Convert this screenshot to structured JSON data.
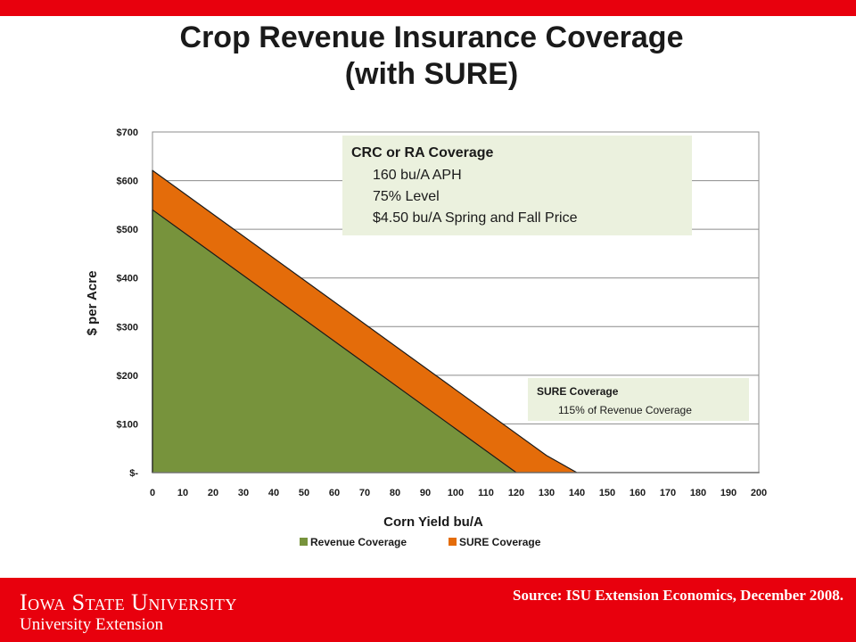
{
  "slide": {
    "title_line1": "Crop Revenue Insurance Coverage",
    "title_line2": "(with SURE)"
  },
  "footer": {
    "logo_main": "Iowa State University",
    "logo_sub": "University Extension",
    "source": "Source:  ISU Extension Economics, December 2008."
  },
  "colors": {
    "brand_red": "#e8000d",
    "revenue_green": "#77933c",
    "sure_orange": "#e46c0a",
    "box_fill": "#ebf1de"
  },
  "chart_data": {
    "type": "area",
    "ylabel": "$ per Acre",
    "xlabel": "Corn Yield bu/A",
    "xlim": [
      0,
      200
    ],
    "ylim": [
      0,
      700
    ],
    "x_ticks": [
      "0",
      "10",
      "20",
      "30",
      "40",
      "50",
      "60",
      "70",
      "80",
      "90",
      "100",
      "110",
      "120",
      "130",
      "140",
      "150",
      "160",
      "170",
      "180",
      "190",
      "200"
    ],
    "y_ticks": [
      {
        "value": 0,
        "label": "$-"
      },
      {
        "value": 100,
        "label": "$100"
      },
      {
        "value": 200,
        "label": "$200"
      },
      {
        "value": 300,
        "label": "$300"
      },
      {
        "value": 400,
        "label": "$400"
      },
      {
        "value": 500,
        "label": "$500"
      },
      {
        "value": 600,
        "label": "$600"
      },
      {
        "value": 700,
        "label": "$700"
      }
    ],
    "grid": "horizontal",
    "legend_position": "bottom",
    "series": [
      {
        "name": "Revenue Coverage",
        "color": "#77933c",
        "x": [
          0,
          120,
          200
        ],
        "y": [
          540,
          0,
          0
        ]
      },
      {
        "name": "SURE Coverage",
        "color": "#e46c0a",
        "x": [
          0,
          130,
          140,
          200
        ],
        "y": [
          621,
          35,
          0,
          0
        ]
      }
    ],
    "annotations": [
      {
        "title": "CRC or RA Coverage",
        "lines": [
          "160 bu/A APH",
          "75% Level",
          "$4.50 bu/A Spring and Fall Price"
        ]
      },
      {
        "title": "SURE Coverage",
        "lines": [
          "115% of Revenue Coverage"
        ]
      }
    ]
  }
}
